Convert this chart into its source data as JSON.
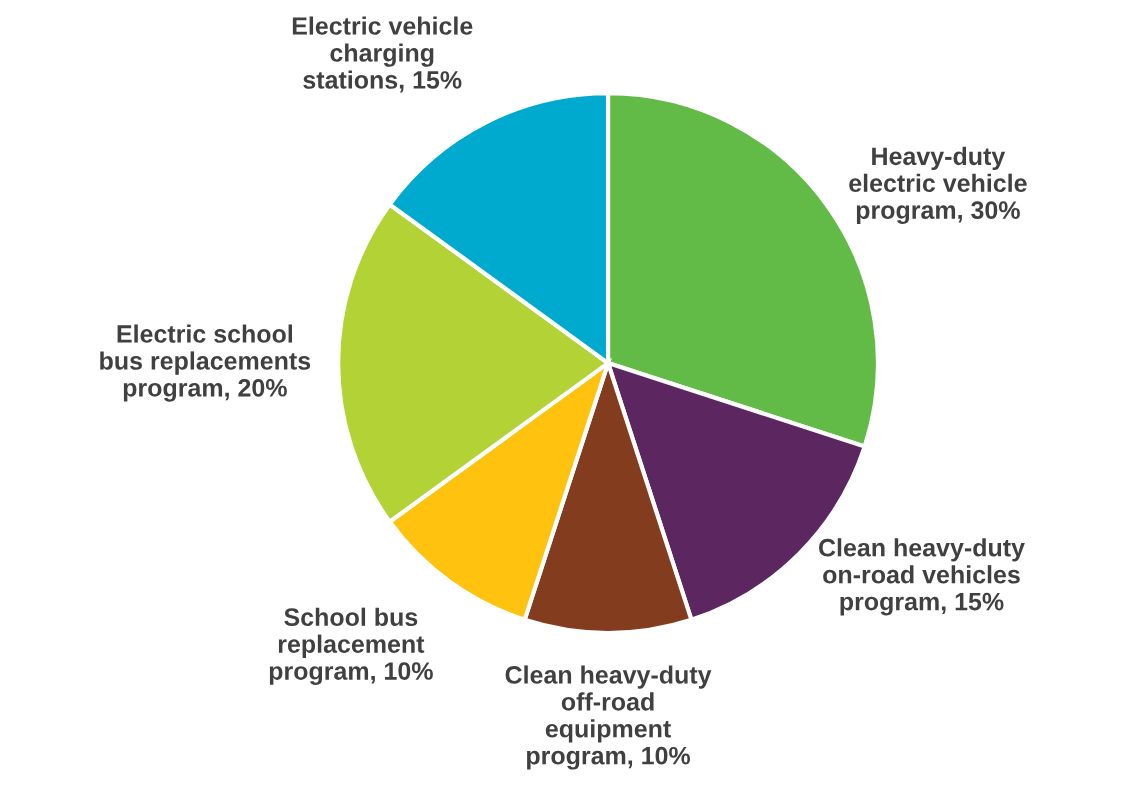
{
  "chart_data": {
    "type": "pie",
    "categories": [
      "Heavy-duty electric vehicle program, 30%",
      "Clean heavy-duty on-road vehicles program, 15%",
      "Clean heavy-duty off-road equipment program, 10%",
      "School bus replacement program, 10%",
      "Electric school bus replacements program, 20%",
      "Electric vehicle charging stations, 15%"
    ],
    "values": [
      30,
      15,
      10,
      10,
      20,
      15
    ],
    "colors": [
      "#62bb46",
      "#5c2660",
      "#843c1f",
      "#ffc20e",
      "#b2d235",
      "#00a9ce"
    ]
  }
}
